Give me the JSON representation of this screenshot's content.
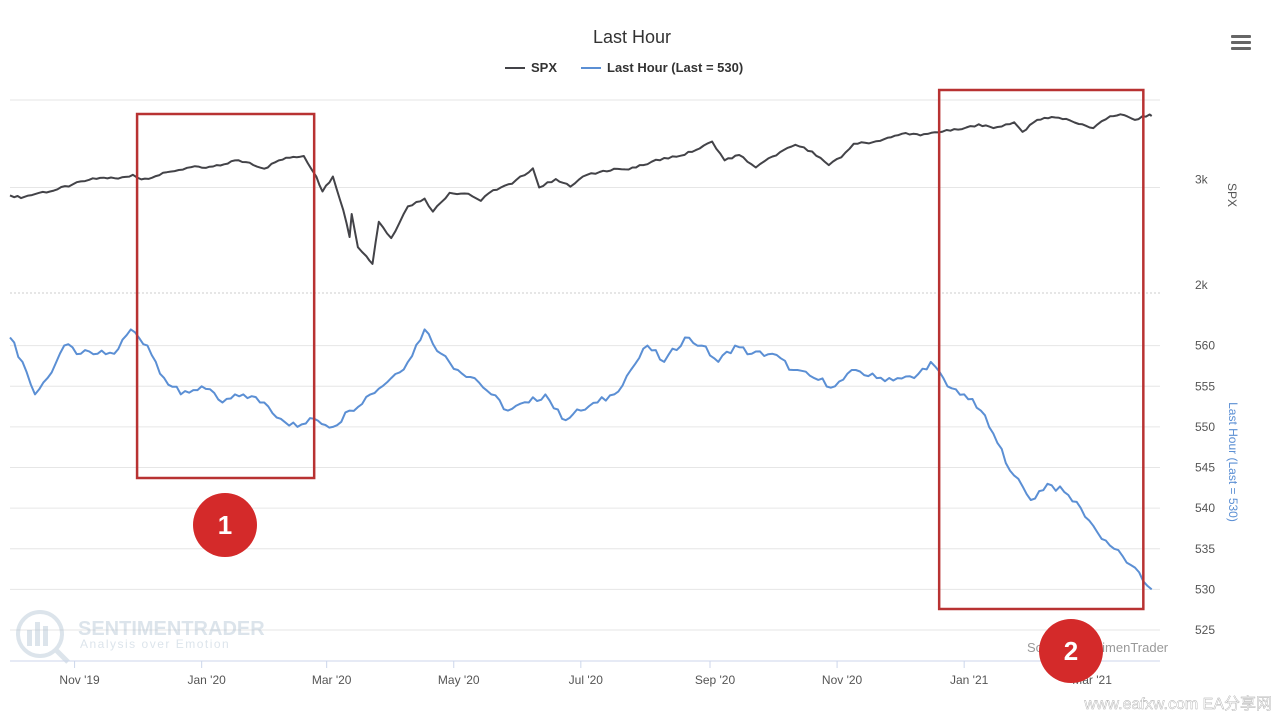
{
  "chart_data": {
    "type": "line",
    "title": "Last Hour",
    "x_tick_labels": [
      "Nov '19",
      "Jan '20",
      "Mar '20",
      "May '20",
      "Jul '20",
      "Sep '20",
      "Nov '20",
      "Jan '21",
      "Mar '21"
    ],
    "x_range": [
      "2019-10-01",
      "2021-04-05"
    ],
    "series": [
      {
        "name": "SPX",
        "axis": "right-top",
        "color": "#434348",
        "points": [
          [
            "2019-10-01",
            2910
          ],
          [
            "2019-10-03",
            2890
          ],
          [
            "2019-10-08",
            2895
          ],
          [
            "2019-10-15",
            2940
          ],
          [
            "2019-10-22",
            2965
          ],
          [
            "2019-10-31",
            3035
          ],
          [
            "2019-11-08",
            3090
          ],
          [
            "2019-11-15",
            3115
          ],
          [
            "2019-11-22",
            3105
          ],
          [
            "2019-11-29",
            3150
          ],
          [
            "2019-12-03",
            3095
          ],
          [
            "2019-12-10",
            3135
          ],
          [
            "2019-12-17",
            3190
          ],
          [
            "2019-12-27",
            3245
          ],
          [
            "2020-01-03",
            3235
          ],
          [
            "2020-01-10",
            3265
          ],
          [
            "2020-01-17",
            3330
          ],
          [
            "2020-01-24",
            3300
          ],
          [
            "2020-01-31",
            3225
          ],
          [
            "2020-02-07",
            3330
          ],
          [
            "2020-02-14",
            3375
          ],
          [
            "2020-02-19",
            3386
          ],
          [
            "2020-02-25",
            3130
          ],
          [
            "2020-02-28",
            2955
          ],
          [
            "2020-03-04",
            3130
          ],
          [
            "2020-03-09",
            2750
          ],
          [
            "2020-03-12",
            2480
          ],
          [
            "2020-03-13",
            2710
          ],
          [
            "2020-03-16",
            2385
          ],
          [
            "2020-03-20",
            2305
          ],
          [
            "2020-03-23",
            2237
          ],
          [
            "2020-03-26",
            2630
          ],
          [
            "2020-04-01",
            2470
          ],
          [
            "2020-04-09",
            2790
          ],
          [
            "2020-04-17",
            2875
          ],
          [
            "2020-04-21",
            2735
          ],
          [
            "2020-04-29",
            2940
          ],
          [
            "2020-05-08",
            2930
          ],
          [
            "2020-05-14",
            2850
          ],
          [
            "2020-05-20",
            2970
          ],
          [
            "2020-05-29",
            3045
          ],
          [
            "2020-06-08",
            3230
          ],
          [
            "2020-06-11",
            3000
          ],
          [
            "2020-06-19",
            3100
          ],
          [
            "2020-06-26",
            3010
          ],
          [
            "2020-07-02",
            3130
          ],
          [
            "2020-07-10",
            3185
          ],
          [
            "2020-07-17",
            3225
          ],
          [
            "2020-07-24",
            3215
          ],
          [
            "2020-07-31",
            3270
          ],
          [
            "2020-08-10",
            3360
          ],
          [
            "2020-08-18",
            3390
          ],
          [
            "2020-08-27",
            3485
          ],
          [
            "2020-09-02",
            3580
          ],
          [
            "2020-09-08",
            3330
          ],
          [
            "2020-09-15",
            3400
          ],
          [
            "2020-09-23",
            3240
          ],
          [
            "2020-10-01",
            3380
          ],
          [
            "2020-10-12",
            3535
          ],
          [
            "2020-10-20",
            3445
          ],
          [
            "2020-10-28",
            3270
          ],
          [
            "2020-11-03",
            3370
          ],
          [
            "2020-11-09",
            3550
          ],
          [
            "2020-11-18",
            3570
          ],
          [
            "2020-11-27",
            3640
          ],
          [
            "2020-12-04",
            3700
          ],
          [
            "2020-12-11",
            3665
          ],
          [
            "2020-12-18",
            3710
          ],
          [
            "2020-12-31",
            3756
          ],
          [
            "2021-01-08",
            3825
          ],
          [
            "2021-01-15",
            3770
          ],
          [
            "2021-01-25",
            3855
          ],
          [
            "2021-01-29",
            3715
          ],
          [
            "2021-02-05",
            3890
          ],
          [
            "2021-02-12",
            3935
          ],
          [
            "2021-02-19",
            3905
          ],
          [
            "2021-02-25",
            3830
          ],
          [
            "2021-03-04",
            3770
          ],
          [
            "2021-03-12",
            3945
          ],
          [
            "2021-03-17",
            3975
          ],
          [
            "2021-03-24",
            3890
          ],
          [
            "2021-03-31",
            3972
          ],
          [
            "2021-04-01",
            3950
          ]
        ]
      },
      {
        "name": "Last Hour (Last = 530)",
        "axis": "right-bottom",
        "color": "#5b8fd4",
        "points": [
          [
            "2019-10-01",
            561
          ],
          [
            "2019-10-07",
            558
          ],
          [
            "2019-10-13",
            554
          ],
          [
            "2019-10-19",
            556
          ],
          [
            "2019-10-27",
            560
          ],
          [
            "2019-11-04",
            559
          ],
          [
            "2019-11-12",
            559
          ],
          [
            "2019-11-20",
            559
          ],
          [
            "2019-11-28",
            562
          ],
          [
            "2019-12-06",
            560
          ],
          [
            "2019-12-14",
            556
          ],
          [
            "2019-12-22",
            554
          ],
          [
            "2020-01-01",
            555
          ],
          [
            "2020-01-11",
            553
          ],
          [
            "2020-01-21",
            554
          ],
          [
            "2020-01-31",
            553
          ],
          [
            "2020-02-08",
            551
          ],
          [
            "2020-02-16",
            550
          ],
          [
            "2020-02-24",
            551
          ],
          [
            "2020-03-04",
            550
          ],
          [
            "2020-03-12",
            552
          ],
          [
            "2020-03-22",
            554
          ],
          [
            "2020-04-01",
            556
          ],
          [
            "2020-04-09",
            558
          ],
          [
            "2020-04-17",
            562
          ],
          [
            "2020-04-25",
            559
          ],
          [
            "2020-05-03",
            557
          ],
          [
            "2020-05-11",
            556
          ],
          [
            "2020-05-19",
            554
          ],
          [
            "2020-05-27",
            552
          ],
          [
            "2020-06-06",
            553
          ],
          [
            "2020-06-14",
            554
          ],
          [
            "2020-06-22",
            551
          ],
          [
            "2020-07-01",
            552
          ],
          [
            "2020-07-09",
            553
          ],
          [
            "2020-07-17",
            554
          ],
          [
            "2020-07-25",
            557
          ],
          [
            "2020-08-02",
            560
          ],
          [
            "2020-08-10",
            558
          ],
          [
            "2020-08-20",
            561
          ],
          [
            "2020-08-28",
            560
          ],
          [
            "2020-09-05",
            558
          ],
          [
            "2020-09-13",
            560
          ],
          [
            "2020-09-21",
            559
          ],
          [
            "2020-10-01",
            559
          ],
          [
            "2020-10-11",
            557
          ],
          [
            "2020-10-21",
            556
          ],
          [
            "2020-10-31",
            555
          ],
          [
            "2020-11-10",
            557
          ],
          [
            "2020-11-20",
            556
          ],
          [
            "2020-11-30",
            556
          ],
          [
            "2020-12-08",
            556
          ],
          [
            "2020-12-16",
            558
          ],
          [
            "2020-12-24",
            555
          ],
          [
            "2021-01-01",
            554
          ],
          [
            "2021-01-09",
            552
          ],
          [
            "2021-01-17",
            548
          ],
          [
            "2021-01-25",
            544
          ],
          [
            "2021-02-02",
            541
          ],
          [
            "2021-02-10",
            543
          ],
          [
            "2021-02-18",
            542
          ],
          [
            "2021-02-26",
            540
          ],
          [
            "2021-03-06",
            537
          ],
          [
            "2021-03-14",
            535
          ],
          [
            "2021-03-22",
            533
          ],
          [
            "2021-03-28",
            531
          ],
          [
            "2021-04-01",
            530
          ]
        ]
      }
    ],
    "y_axes": [
      {
        "title": "SPX",
        "scale": "log",
        "range": [
          2000,
          4200
        ],
        "tick_labels": [
          "3k",
          "2k"
        ],
        "tick_values": [
          3000,
          2000
        ]
      },
      {
        "title": "Last Hour (Last = 530)",
        "scale": "linear",
        "range": [
          525,
          565
        ],
        "tick_labels": [
          "560",
          "555",
          "550",
          "545",
          "540",
          "535",
          "530",
          "525"
        ],
        "tick_values": [
          560,
          555,
          550,
          545,
          540,
          535,
          530,
          525
        ]
      }
    ],
    "annotations": [
      {
        "label": "1",
        "x_range": [
          "2019-12-01",
          "2020-02-24"
        ]
      },
      {
        "label": "2",
        "x_range": [
          "2020-12-20",
          "2021-03-28"
        ]
      }
    ],
    "legend_placement": "top-center",
    "grid": true
  },
  "colors": {
    "spx": "#434348",
    "last_hour": "#5b8fd4",
    "box": "#b83232",
    "callout": "#d42a2a"
  },
  "watermark": {
    "brand": "SENTIMENTRADER",
    "tagline": "Analysis over Emotion"
  },
  "footer_credit": "Source: SentimenTrader",
  "menu_icon": "hamburger-menu-icon",
  "watermark_site": "www.eafxw.com   EA分享网"
}
